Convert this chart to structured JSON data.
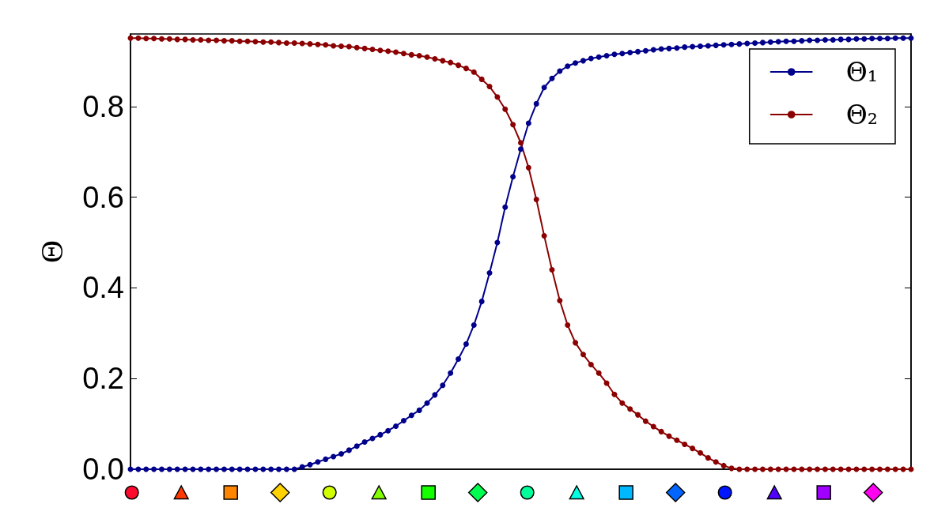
{
  "chart_data": {
    "type": "line",
    "ylabel": "Θ",
    "categories": [
      null,
      null,
      null,
      null,
      null,
      null,
      null,
      null,
      null,
      null,
      null,
      null,
      null,
      null,
      null,
      null,
      null,
      null,
      null,
      null,
      null,
      null,
      null,
      null,
      null,
      null,
      null,
      null,
      null,
      null,
      null,
      null,
      null,
      null,
      null,
      null,
      null,
      null,
      null,
      null,
      null,
      null,
      null,
      null,
      null,
      null,
      null,
      null,
      null,
      null,
      null,
      null,
      null,
      null,
      null,
      null,
      null,
      null,
      null,
      null,
      null,
      null,
      null,
      null,
      null,
      null,
      null,
      null,
      null,
      null,
      null,
      null,
      null,
      null,
      null,
      null,
      null,
      null,
      null,
      null,
      null,
      null,
      null,
      null,
      null,
      null,
      null,
      null,
      null,
      null,
      null,
      null,
      null,
      null,
      null,
      null,
      null,
      null,
      null,
      null,
      null
    ],
    "series": [
      {
        "name": "Θ₁",
        "color": "#00008b",
        "values": [
          0,
          0,
          0,
          0,
          0,
          0,
          0,
          0,
          0,
          0,
          0,
          0,
          0,
          0,
          0,
          0,
          0,
          0,
          0,
          0,
          0,
          0,
          0.005,
          0.01,
          0.016,
          0.022,
          0.028,
          0.034,
          0.042,
          0.051,
          0.06,
          0.068,
          0.076,
          0.085,
          0.095,
          0.107,
          0.119,
          0.13,
          0.146,
          0.164,
          0.185,
          0.212,
          0.243,
          0.276,
          0.318,
          0.37,
          0.433,
          0.5,
          0.578,
          0.645,
          0.706,
          0.763,
          0.806,
          0.842,
          0.862,
          0.878,
          0.889,
          0.896,
          0.901,
          0.906,
          0.909,
          0.912,
          0.915,
          0.917,
          0.919,
          0.921,
          0.923,
          0.925,
          0.927,
          0.928,
          0.929,
          0.931,
          0.932,
          0.933,
          0.934,
          0.935,
          0.936,
          0.937,
          0.938,
          0.939,
          0.94,
          0.941,
          0.942,
          0.943,
          0.944,
          0.944,
          0.945,
          0.946,
          0.946,
          0.947,
          0.947,
          0.948,
          0.948,
          0.949,
          0.949,
          0.95,
          0.95,
          0.95,
          0.951,
          0.951,
          0.951
        ]
      },
      {
        "name": "Θ₂",
        "color": "#8b0000",
        "values": [
          0.951,
          0.951,
          0.95,
          0.95,
          0.949,
          0.949,
          0.948,
          0.948,
          0.947,
          0.947,
          0.946,
          0.946,
          0.945,
          0.945,
          0.944,
          0.944,
          0.943,
          0.942,
          0.942,
          0.941,
          0.94,
          0.94,
          0.939,
          0.938,
          0.937,
          0.936,
          0.934,
          0.933,
          0.932,
          0.93,
          0.928,
          0.926,
          0.924,
          0.922,
          0.92,
          0.917,
          0.914,
          0.912,
          0.909,
          0.905,
          0.901,
          0.897,
          0.891,
          0.884,
          0.876,
          0.86,
          0.844,
          0.821,
          0.794,
          0.76,
          0.72,
          0.665,
          0.595,
          0.515,
          0.44,
          0.372,
          0.318,
          0.279,
          0.253,
          0.231,
          0.212,
          0.19,
          0.165,
          0.146,
          0.133,
          0.12,
          0.106,
          0.094,
          0.083,
          0.073,
          0.064,
          0.055,
          0.046,
          0.036,
          0.025,
          0.016,
          0.008,
          0.002,
          0,
          0,
          0,
          0,
          0,
          0,
          0,
          0,
          0,
          0,
          0,
          0,
          0,
          0,
          0,
          0,
          0,
          0,
          0,
          0,
          0,
          0,
          0
        ]
      }
    ],
    "ylim": [
      0,
      0.96
    ],
    "yticks": [
      {
        "value": 0,
        "label": "0.0"
      },
      0.2,
      0.4,
      0.6,
      0.8
    ],
    "tick_labels": "y",
    "grid": false,
    "legend": "top right",
    "marker": "circle",
    "line_style": "solid"
  }
}
